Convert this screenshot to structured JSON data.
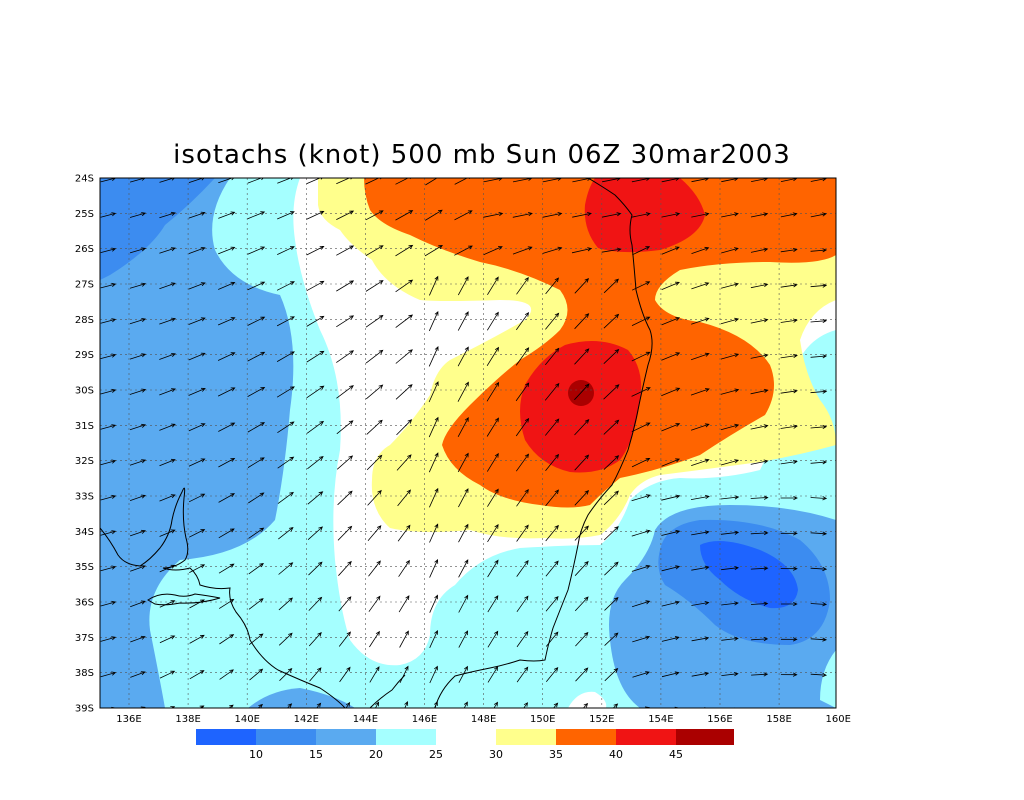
{
  "title": "isotachs (knot) 500 mb Sun 06Z 30mar2003",
  "lat_labels": [
    "24S",
    "25S",
    "26S",
    "27S",
    "28S",
    "29S",
    "30S",
    "31S",
    "32S",
    "33S",
    "34S",
    "35S",
    "36S",
    "37S",
    "38S",
    "39S"
  ],
  "lon_labels": [
    "136E",
    "138E",
    "140E",
    "142E",
    "144E",
    "146E",
    "148E",
    "150E",
    "152E",
    "154E",
    "156E",
    "158E",
    "160E"
  ],
  "colorbar": {
    "bins": [
      {
        "color": "#1e64ff"
      },
      {
        "color": "#3c8cf0"
      },
      {
        "color": "#5aaaf0"
      },
      {
        "color": "#a5ffff"
      },
      {
        "color": "#ffffff"
      },
      {
        "color": "#ffff8c"
      },
      {
        "color": "#ff6400"
      },
      {
        "color": "#f01414"
      },
      {
        "color": "#aa0000"
      }
    ],
    "labels": [
      "10",
      "15",
      "20",
      "25",
      "30",
      "35",
      "40",
      "45"
    ]
  }
}
